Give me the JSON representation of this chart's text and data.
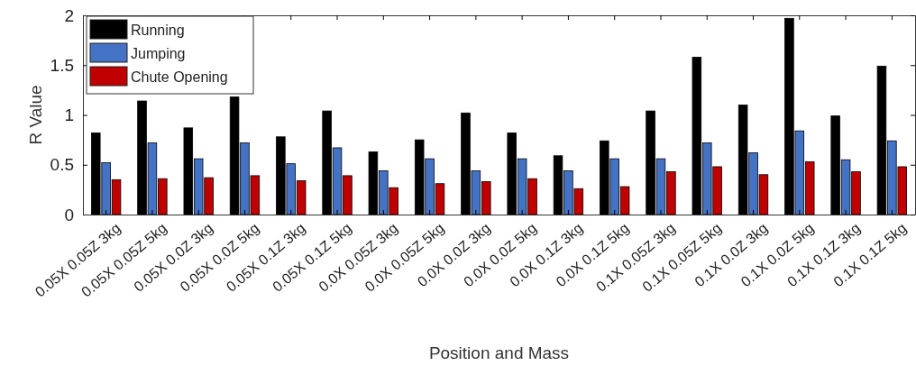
{
  "chart_data": {
    "type": "bar",
    "xlabel": "Position and Mass",
    "ylabel": "R Value",
    "categories": [
      "0.05X 0.05Z 3kg",
      "0.05X 0.05Z 5kg",
      "0.05X 0.0Z 3kg",
      "0.05X 0.0Z 5kg",
      "0.05X 0.1Z 3kg",
      "0.05X 0.1Z 5kg",
      "0.0X 0.05Z 3kg",
      "0.0X 0.05Z 5kg",
      "0.0X 0.0Z 3kg",
      "0.0X 0.0Z 5kg",
      "0.0X 0.1Z 3kg",
      "0.0X 0.1Z 5kg",
      "0.1X 0.05Z 3kg",
      "0.1X 0.05Z 5kg",
      "0.1X 0.0Z 3kg",
      "0.1X 0.0Z 5kg",
      "0.1X 0.1Z 3kg",
      "0.1X 0.1Z 5kg"
    ],
    "series": [
      {
        "name": "Running",
        "color": "#000000",
        "values": [
          0.82,
          1.14,
          0.87,
          1.18,
          0.78,
          1.04,
          0.63,
          0.75,
          1.02,
          0.82,
          0.59,
          0.74,
          1.04,
          1.58,
          1.1,
          1.97,
          0.99,
          1.49
        ]
      },
      {
        "name": "Jumping",
        "color": "#4472c4",
        "values": [
          0.52,
          0.72,
          0.56,
          0.72,
          0.51,
          0.67,
          0.44,
          0.56,
          0.44,
          0.56,
          0.44,
          0.56,
          0.56,
          0.72,
          0.62,
          0.84,
          0.55,
          0.74
        ]
      },
      {
        "name": "Chute Opening",
        "color": "#c00000",
        "values": [
          0.35,
          0.36,
          0.37,
          0.39,
          0.34,
          0.39,
          0.27,
          0.31,
          0.33,
          0.36,
          0.26,
          0.28,
          0.43,
          0.48,
          0.4,
          0.53,
          0.43,
          0.48
        ]
      }
    ],
    "ylim": [
      0,
      2
    ],
    "yticks": [
      0,
      {
        "value": 0.5,
        "label": "0.5"
      },
      1,
      {
        "value": 1.5,
        "label": "1.5"
      },
      2
    ],
    "legend": "top left",
    "grid": false
  }
}
